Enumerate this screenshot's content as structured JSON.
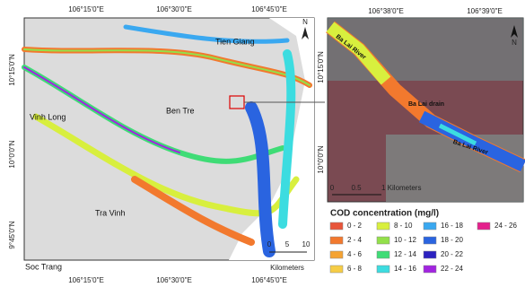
{
  "main_map": {
    "top_labels": [
      "106°15'0\"E",
      "106°30'0\"E",
      "106°45'0\"E"
    ],
    "bottom_labels": [
      "106°15'0\"E",
      "106°30'0\"E",
      "106°45'0\"E"
    ],
    "left_labels": [
      "10°15'0\"N",
      "10°0'0\"N",
      "9°45'0\"N"
    ],
    "places": [
      "Tien Giang",
      "Ben Tre",
      "Vinh Long",
      "Tra Vinh",
      "Soc Trang"
    ],
    "scale": [
      "0",
      "5",
      "10",
      "Kilometers"
    ],
    "north": "N"
  },
  "inset_map": {
    "top_labels": [
      "106°38'0\"E",
      "106°39'0\"E"
    ],
    "left_labels": [
      "10°15'0\"N",
      "10°0'0\"N"
    ],
    "places": [
      "Ba Lai River",
      "Ba Lai drain",
      "Ba Lai River"
    ],
    "scale": [
      "0",
      "0.5",
      "1 Kilometers"
    ],
    "north": "N"
  },
  "legend": {
    "title": "COD concentration (mg/l)",
    "items": [
      {
        "label": "0 - 2",
        "color": "#e8553a"
      },
      {
        "label": "2 - 4",
        "color": "#f2792e"
      },
      {
        "label": "4 - 6",
        "color": "#f5a332"
      },
      {
        "label": "6 - 8",
        "color": "#f6cd45"
      },
      {
        "label": "8 - 10",
        "color": "#d8ef3e"
      },
      {
        "label": "10 - 12",
        "color": "#93e04a"
      },
      {
        "label": "12 - 14",
        "color": "#3fdc76"
      },
      {
        "label": "14 - 16",
        "color": "#3cdce0"
      },
      {
        "label": "16 - 18",
        "color": "#3aa8f0"
      },
      {
        "label": "18 - 20",
        "color": "#2a64e0"
      },
      {
        "label": "20 - 22",
        "color": "#2c22c0"
      },
      {
        "label": "22 - 24",
        "color": "#a224e0"
      },
      {
        "label": "24 - 26",
        "color": "#e4208c"
      }
    ]
  }
}
